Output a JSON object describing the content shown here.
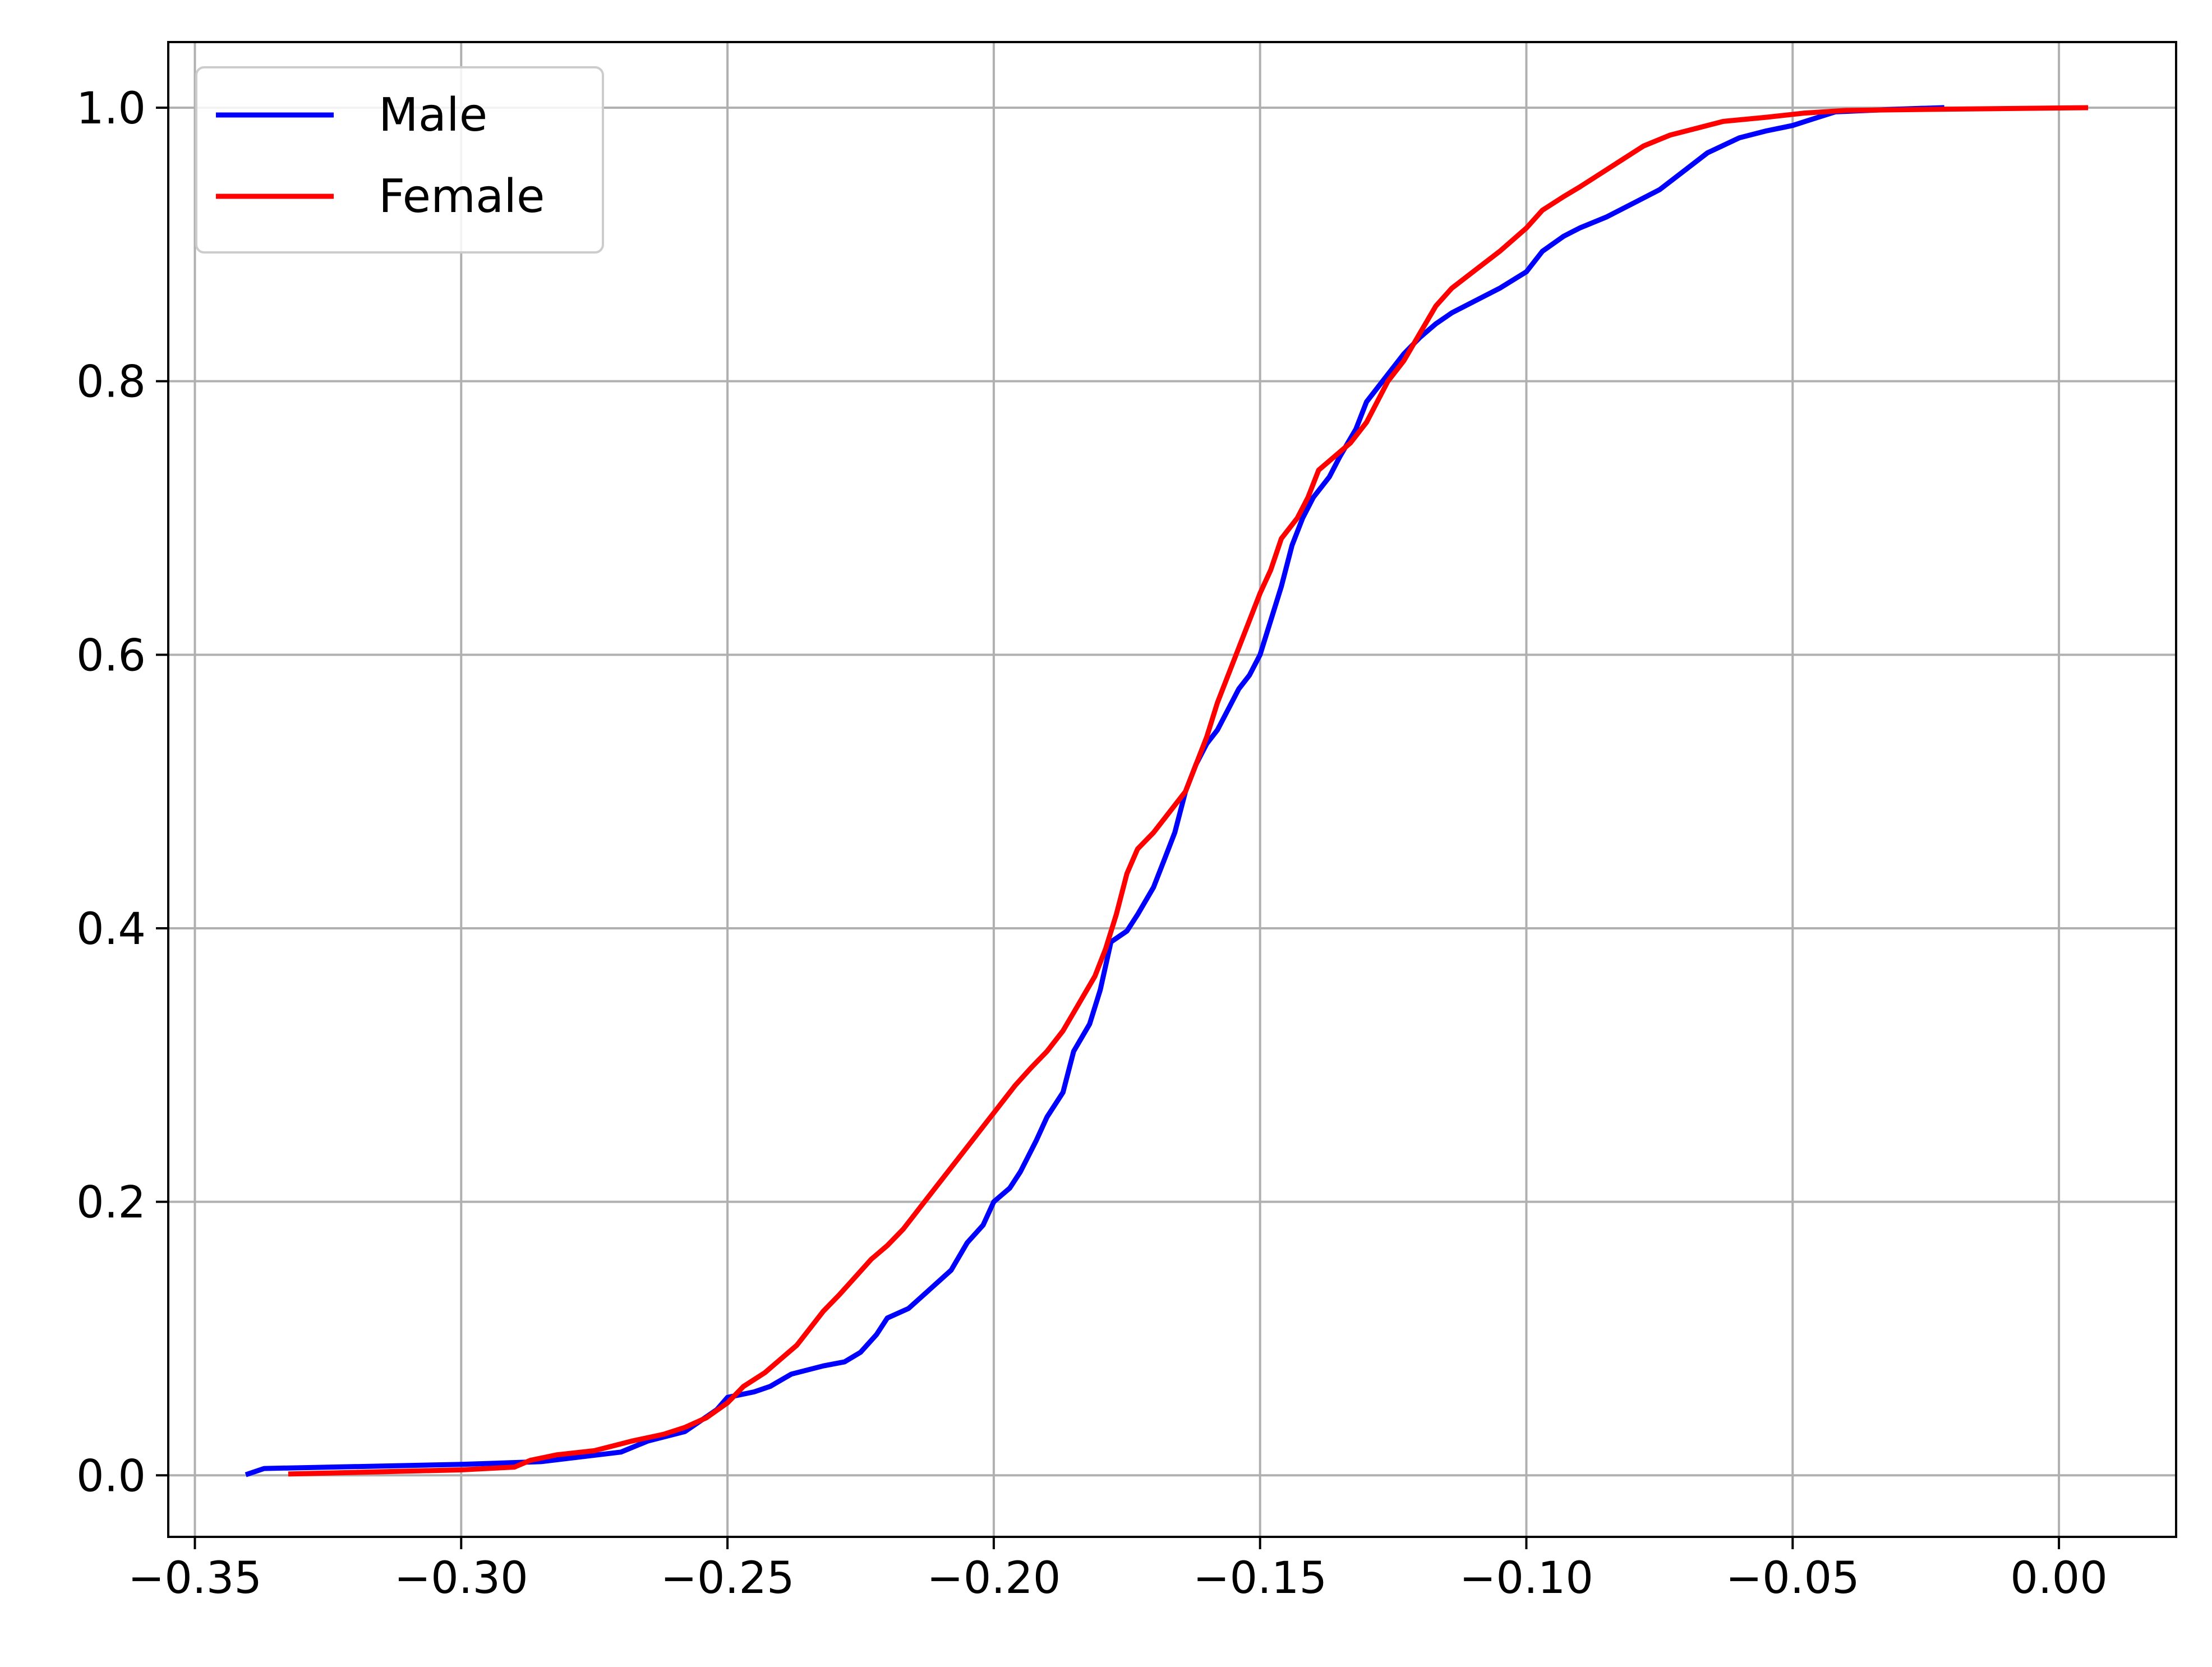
{
  "chart_data": {
    "type": "line",
    "title": "",
    "xlabel": "",
    "ylabel": "",
    "xlim": [
      -0.355,
      0.022
    ],
    "ylim": [
      -0.045,
      1.048
    ],
    "grid": true,
    "legend_position": "upper-left",
    "x_ticks": [
      {
        "value": -0.35,
        "label": "−0.35"
      },
      {
        "value": -0.3,
        "label": "−0.30"
      },
      {
        "value": -0.25,
        "label": "−0.25"
      },
      {
        "value": -0.2,
        "label": "−0.20"
      },
      {
        "value": -0.15,
        "label": "−0.15"
      },
      {
        "value": -0.1,
        "label": "−0.10"
      },
      {
        "value": -0.05,
        "label": "−0.05"
      },
      {
        "value": 0.0,
        "label": "0.00"
      }
    ],
    "y_ticks": [
      {
        "value": 0.0,
        "label": "0.0"
      },
      {
        "value": 0.2,
        "label": "0.2"
      },
      {
        "value": 0.4,
        "label": "0.4"
      },
      {
        "value": 0.6,
        "label": "0.6"
      },
      {
        "value": 0.8,
        "label": "0.8"
      },
      {
        "value": 1.0,
        "label": "1.0"
      }
    ],
    "series": [
      {
        "name": "Male",
        "color": "#0000ff",
        "points": [
          [
            -0.34,
            0.001
          ],
          [
            -0.337,
            0.005
          ],
          [
            -0.3,
            0.008
          ],
          [
            -0.285,
            0.01
          ],
          [
            -0.27,
            0.017
          ],
          [
            -0.265,
            0.025
          ],
          [
            -0.258,
            0.032
          ],
          [
            -0.252,
            0.048
          ],
          [
            -0.25,
            0.057
          ],
          [
            -0.245,
            0.061
          ],
          [
            -0.242,
            0.065
          ],
          [
            -0.238,
            0.074
          ],
          [
            -0.232,
            0.08
          ],
          [
            -0.228,
            0.083
          ],
          [
            -0.225,
            0.09
          ],
          [
            -0.222,
            0.103
          ],
          [
            -0.22,
            0.115
          ],
          [
            -0.216,
            0.122
          ],
          [
            -0.212,
            0.136
          ],
          [
            -0.208,
            0.15
          ],
          [
            -0.205,
            0.17
          ],
          [
            -0.202,
            0.183
          ],
          [
            -0.2,
            0.2
          ],
          [
            -0.197,
            0.21
          ],
          [
            -0.195,
            0.222
          ],
          [
            -0.192,
            0.245
          ],
          [
            -0.19,
            0.262
          ],
          [
            -0.187,
            0.28
          ],
          [
            -0.185,
            0.31
          ],
          [
            -0.182,
            0.33
          ],
          [
            -0.18,
            0.355
          ],
          [
            -0.178,
            0.39
          ],
          [
            -0.175,
            0.398
          ],
          [
            -0.173,
            0.41
          ],
          [
            -0.17,
            0.43
          ],
          [
            -0.168,
            0.45
          ],
          [
            -0.166,
            0.47
          ],
          [
            -0.164,
            0.5
          ],
          [
            -0.162,
            0.52
          ],
          [
            -0.16,
            0.535
          ],
          [
            -0.158,
            0.545
          ],
          [
            -0.156,
            0.56
          ],
          [
            -0.154,
            0.575
          ],
          [
            -0.152,
            0.585
          ],
          [
            -0.15,
            0.6
          ],
          [
            -0.148,
            0.625
          ],
          [
            -0.146,
            0.65
          ],
          [
            -0.144,
            0.68
          ],
          [
            -0.142,
            0.7
          ],
          [
            -0.14,
            0.715
          ],
          [
            -0.137,
            0.73
          ],
          [
            -0.135,
            0.745
          ],
          [
            -0.132,
            0.765
          ],
          [
            -0.13,
            0.785
          ],
          [
            -0.127,
            0.8
          ],
          [
            -0.123,
            0.82
          ],
          [
            -0.12,
            0.832
          ],
          [
            -0.117,
            0.842
          ],
          [
            -0.114,
            0.85
          ],
          [
            -0.11,
            0.858
          ],
          [
            -0.105,
            0.868
          ],
          [
            -0.1,
            0.88
          ],
          [
            -0.097,
            0.895
          ],
          [
            -0.093,
            0.906
          ],
          [
            -0.09,
            0.912
          ],
          [
            -0.085,
            0.92
          ],
          [
            -0.08,
            0.93
          ],
          [
            -0.075,
            0.94
          ],
          [
            -0.07,
            0.955
          ],
          [
            -0.066,
            0.967
          ],
          [
            -0.06,
            0.978
          ],
          [
            -0.055,
            0.983
          ],
          [
            -0.05,
            0.987
          ],
          [
            -0.046,
            0.992
          ],
          [
            -0.042,
            0.997
          ],
          [
            -0.03,
            0.999
          ],
          [
            -0.022,
            1.0
          ]
        ]
      },
      {
        "name": "Female",
        "color": "#ff0000",
        "points": [
          [
            -0.332,
            0.001
          ],
          [
            -0.3,
            0.004
          ],
          [
            -0.29,
            0.006
          ],
          [
            -0.287,
            0.011
          ],
          [
            -0.282,
            0.015
          ],
          [
            -0.275,
            0.018
          ],
          [
            -0.268,
            0.025
          ],
          [
            -0.262,
            0.03
          ],
          [
            -0.258,
            0.035
          ],
          [
            -0.254,
            0.042
          ],
          [
            -0.25,
            0.053
          ],
          [
            -0.247,
            0.065
          ],
          [
            -0.243,
            0.075
          ],
          [
            -0.24,
            0.085
          ],
          [
            -0.237,
            0.095
          ],
          [
            -0.235,
            0.105
          ],
          [
            -0.232,
            0.12
          ],
          [
            -0.229,
            0.132
          ],
          [
            -0.226,
            0.145
          ],
          [
            -0.223,
            0.158
          ],
          [
            -0.22,
            0.168
          ],
          [
            -0.217,
            0.18
          ],
          [
            -0.214,
            0.195
          ],
          [
            -0.211,
            0.21
          ],
          [
            -0.208,
            0.225
          ],
          [
            -0.205,
            0.24
          ],
          [
            -0.202,
            0.255
          ],
          [
            -0.199,
            0.27
          ],
          [
            -0.196,
            0.285
          ],
          [
            -0.193,
            0.298
          ],
          [
            -0.19,
            0.31
          ],
          [
            -0.187,
            0.325
          ],
          [
            -0.184,
            0.345
          ],
          [
            -0.181,
            0.365
          ],
          [
            -0.179,
            0.385
          ],
          [
            -0.177,
            0.41
          ],
          [
            -0.175,
            0.44
          ],
          [
            -0.173,
            0.458
          ],
          [
            -0.17,
            0.47
          ],
          [
            -0.167,
            0.485
          ],
          [
            -0.164,
            0.5
          ],
          [
            -0.162,
            0.52
          ],
          [
            -0.16,
            0.54
          ],
          [
            -0.158,
            0.565
          ],
          [
            -0.156,
            0.585
          ],
          [
            -0.154,
            0.605
          ],
          [
            -0.152,
            0.625
          ],
          [
            -0.15,
            0.645
          ],
          [
            -0.148,
            0.662
          ],
          [
            -0.146,
            0.685
          ],
          [
            -0.143,
            0.7
          ],
          [
            -0.141,
            0.715
          ],
          [
            -0.139,
            0.735
          ],
          [
            -0.136,
            0.745
          ],
          [
            -0.133,
            0.755
          ],
          [
            -0.13,
            0.77
          ],
          [
            -0.128,
            0.785
          ],
          [
            -0.126,
            0.8
          ],
          [
            -0.123,
            0.815
          ],
          [
            -0.12,
            0.835
          ],
          [
            -0.117,
            0.855
          ],
          [
            -0.114,
            0.868
          ],
          [
            -0.11,
            0.88
          ],
          [
            -0.105,
            0.895
          ],
          [
            -0.1,
            0.912
          ],
          [
            -0.097,
            0.925
          ],
          [
            -0.093,
            0.935
          ],
          [
            -0.09,
            0.942
          ],
          [
            -0.086,
            0.952
          ],
          [
            -0.082,
            0.962
          ],
          [
            -0.078,
            0.972
          ],
          [
            -0.073,
            0.98
          ],
          [
            -0.068,
            0.985
          ],
          [
            -0.063,
            0.99
          ],
          [
            -0.055,
            0.993
          ],
          [
            -0.048,
            0.996
          ],
          [
            -0.04,
            0.998
          ],
          [
            -0.02,
            0.999
          ],
          [
            0.005,
            1.0
          ]
        ]
      }
    ]
  }
}
